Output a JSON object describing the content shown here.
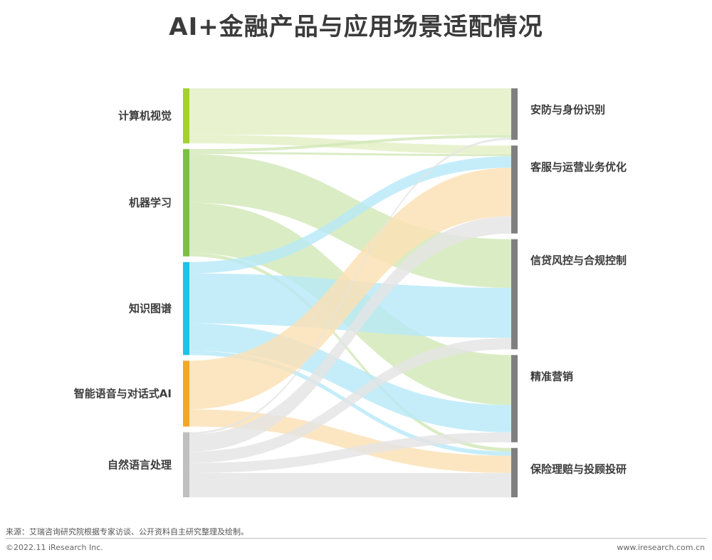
{
  "page": {
    "title": "AI+金融产品与应用场景适配情况",
    "source": "来源：艾瑞咨询研究院根据专家访谈、公开资料自主研究整理及绘制。",
    "copyright": "©2022.11 iResearch Inc.",
    "url": "www.iresearch.com.cn"
  },
  "chart_data": {
    "type": "sankey",
    "title": "AI+金融产品与应用场景适配情况",
    "sources": [
      {
        "name": "计算机视觉",
        "color": "#a6d12a"
      },
      {
        "name": "机器学习",
        "color": "#7bc043"
      },
      {
        "name": "知识图谱",
        "color": "#1ec1ea"
      },
      {
        "name": "智能语音与对话式AI",
        "color": "#f5a623"
      },
      {
        "name": "自然语言处理",
        "color": "#bfbfbf"
      }
    ],
    "targets": [
      {
        "name": "安防与身份识别",
        "color": "#7f7f7f"
      },
      {
        "name": "客服与运营业务优化",
        "color": "#7f7f7f"
      },
      {
        "name": "信贷风控与合规控制",
        "color": "#7f7f7f"
      },
      {
        "name": "精准营销",
        "color": "#7f7f7f"
      },
      {
        "name": "保险理赔与投顾投研",
        "color": "#7f7f7f"
      }
    ],
    "link_colors": {
      "计算机视觉": "#e3efc4",
      "机器学习": "#d2e8b7",
      "知识图谱": "#b7e9f8",
      "智能语音与对话式AI": "#fbe0b5",
      "自然语言处理": "#e4e4e4"
    },
    "links": [
      {
        "source": "计算机视觉",
        "target": "安防与身份识别",
        "value": 6.5
      },
      {
        "source": "计算机视觉",
        "target": "客服与运营业务优化",
        "value": 1.2
      },
      {
        "source": "机器学习",
        "target": "安防与身份识别",
        "value": 0.4
      },
      {
        "source": "机器学习",
        "target": "客服与运营业务优化",
        "value": 0.3
      },
      {
        "source": "机器学习",
        "target": "信贷风控与合规控制",
        "value": 6.8
      },
      {
        "source": "机器学习",
        "target": "精准营销",
        "value": 7.0
      },
      {
        "source": "机器学习",
        "target": "保险理赔与投顾投研",
        "value": 0.5
      },
      {
        "source": "知识图谱",
        "target": "客服与运营业务优化",
        "value": 1.6
      },
      {
        "source": "知识图谱",
        "target": "信贷风控与合规控制",
        "value": 7.0
      },
      {
        "source": "知识图谱",
        "target": "精准营销",
        "value": 3.8
      },
      {
        "source": "知识图谱",
        "target": "保险理赔与投顾投研",
        "value": 0.6
      },
      {
        "source": "智能语音与对话式AI",
        "target": "客服与运营业务优化",
        "value": 6.8
      },
      {
        "source": "智能语音与对话式AI",
        "target": "保险理赔与投顾投研",
        "value": 2.4
      },
      {
        "source": "自然语言处理",
        "target": "安防与身份识别",
        "value": 0.3
      },
      {
        "source": "自然语言处理",
        "target": "客服与运营业务优化",
        "value": 2.4
      },
      {
        "source": "自然语言处理",
        "target": "信贷风控与合规控制",
        "value": 1.6
      },
      {
        "source": "自然语言处理",
        "target": "保险理赔与投顾投研",
        "value": 3.4
      },
      {
        "source": "自然语言处理",
        "target": "精准营销",
        "value": 1.4
      }
    ]
  }
}
